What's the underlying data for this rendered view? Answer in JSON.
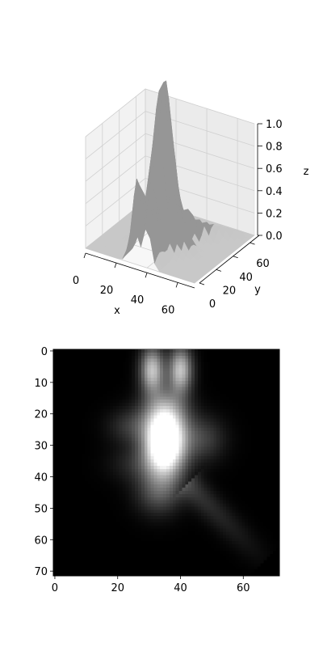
{
  "chart_data": [
    {
      "type": "surface3d",
      "title": "",
      "xlabel": "x",
      "ylabel": "y",
      "zlabel": "z",
      "xticks": [
        "0",
        "20",
        "40",
        "60"
      ],
      "yticks": [
        "0",
        "20",
        "40",
        "60"
      ],
      "zticks": [
        "0.0",
        "0.2",
        "0.4",
        "0.6",
        "0.8",
        "1.0"
      ],
      "xlim": [
        0,
        71
      ],
      "ylim": [
        0,
        71
      ],
      "zlim": [
        0,
        1.0
      ],
      "grid": true,
      "color": "#a6a6a6",
      "peak": {
        "x": 35,
        "y": 30,
        "z_exceeds": 1.0
      }
    },
    {
      "type": "heatmap",
      "title": "",
      "colormap": "gray",
      "shape": [
        72,
        72
      ],
      "xticks": [
        "0",
        "20",
        "40",
        "60"
      ],
      "yticks": [
        "0",
        "10",
        "20",
        "30",
        "40",
        "50",
        "60",
        "70"
      ],
      "xlim": [
        0,
        71
      ],
      "ylim": [
        71,
        0
      ],
      "features": [
        {
          "label": "bright core",
          "x": 35,
          "y": 28,
          "value": 1.0
        },
        {
          "label": "upper lobe left",
          "x": 31,
          "y": 4,
          "value": 0.8
        },
        {
          "label": "upper lobe right",
          "x": 40,
          "y": 4,
          "value": 0.8
        },
        {
          "label": "lower-right streak end",
          "x": 68,
          "y": 62,
          "value": 0.25
        }
      ]
    }
  ]
}
